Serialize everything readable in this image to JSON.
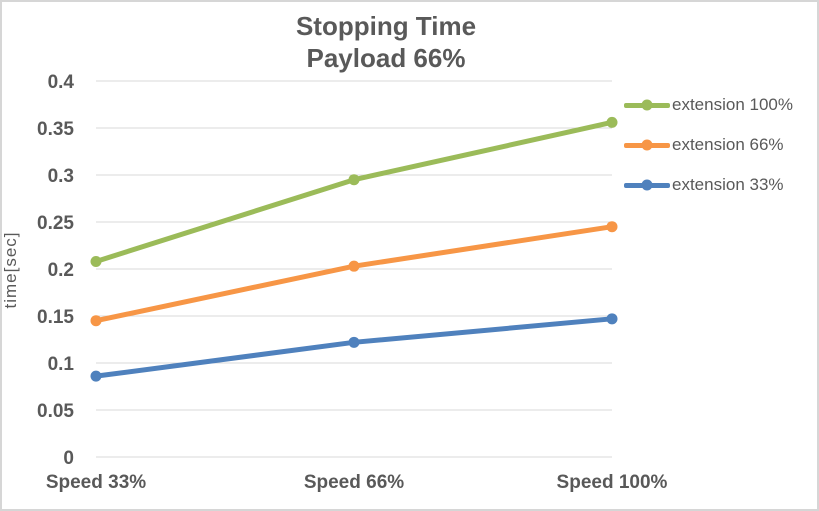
{
  "chart_data": {
    "type": "line",
    "title": "Stopping Time",
    "subtitle": "Payload 66%",
    "ylabel": "time[sec]",
    "categories": [
      "Speed 33%",
      "Speed 66%",
      "Speed 100%"
    ],
    "series": [
      {
        "name": "extension 100%",
        "color": "#9BBB59",
        "values": [
          0.208,
          0.295,
          0.356
        ]
      },
      {
        "name": "extension 66%",
        "color": "#F79646",
        "values": [
          0.145,
          0.203,
          0.245
        ]
      },
      {
        "name": "extension 33%",
        "color": "#4F81BD",
        "values": [
          0.086,
          0.122,
          0.147
        ]
      }
    ],
    "ylim": [
      0,
      0.4
    ],
    "ytick_step": 0.05,
    "yticks": [
      "0",
      "0.05",
      "0.1",
      "0.15",
      "0.2",
      "0.25",
      "0.3",
      "0.35",
      "0.4"
    ],
    "grid": true,
    "legend_position": "right",
    "gridline_color": "#D9D9D9",
    "text_color": "#595959",
    "marker_style": "circle",
    "line_width": 5
  }
}
